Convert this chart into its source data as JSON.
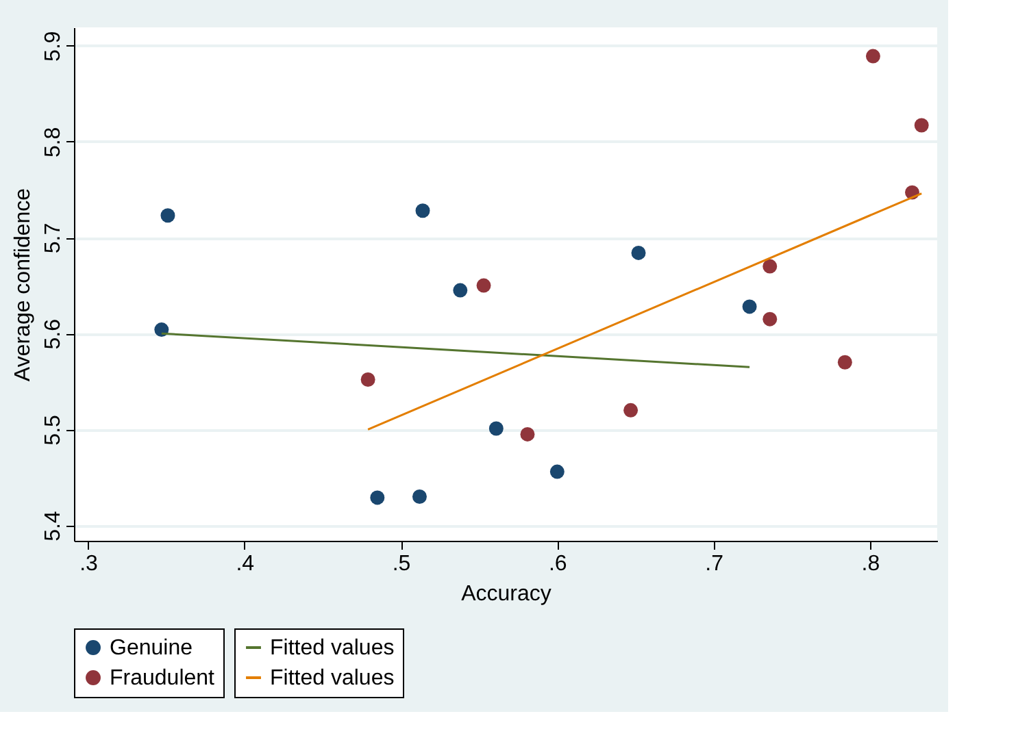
{
  "chart_data": {
    "type": "scatter",
    "xlabel": "Accuracy",
    "ylabel": "Average confidence",
    "xlim": [
      0.291,
      0.843
    ],
    "ylim": [
      5.384,
      5.919
    ],
    "xticks": [
      {
        "value": 0.3,
        "label": ".3"
      },
      {
        "value": 0.4,
        "label": ".4"
      },
      {
        "value": 0.5,
        "label": ".5"
      },
      {
        "value": 0.6,
        "label": ".6"
      },
      {
        "value": 0.7,
        "label": ".7"
      },
      {
        "value": 0.8,
        "label": ".8"
      }
    ],
    "yticks": [
      5.4,
      5.5,
      5.6,
      5.7,
      5.8,
      5.9
    ],
    "grid": "y",
    "legend": "bottom",
    "marker": "circle",
    "series": [
      {
        "name": "Genuine",
        "color": "#1a476f",
        "x": [
          0.351,
          0.347,
          0.514,
          0.538,
          0.561,
          0.485,
          0.512,
          0.6,
          0.652,
          0.723
        ],
        "values": [
          5.723,
          5.604,
          5.728,
          5.645,
          5.501,
          5.429,
          5.43,
          5.456,
          5.684,
          5.628
        ]
      },
      {
        "name": "Fraudulent",
        "color": "#90353b",
        "x": [
          0.553,
          0.479,
          0.581,
          0.647,
          0.736,
          0.736,
          0.784,
          0.802,
          0.833,
          0.827
        ],
        "values": [
          5.65,
          5.552,
          5.495,
          5.52,
          5.67,
          5.615,
          5.57,
          5.889,
          5.817,
          5.747
        ]
      },
      {
        "name": "Fitted values",
        "type": "line",
        "marker": "none",
        "color": "#55752f",
        "x": [
          0.347,
          0.723
        ],
        "values": [
          5.6,
          5.565
        ]
      },
      {
        "name": "Fitted values",
        "type": "line",
        "marker": "none",
        "color": "#e37e00",
        "x": [
          0.479,
          0.833
        ],
        "values": [
          5.5,
          5.746
        ]
      }
    ]
  }
}
